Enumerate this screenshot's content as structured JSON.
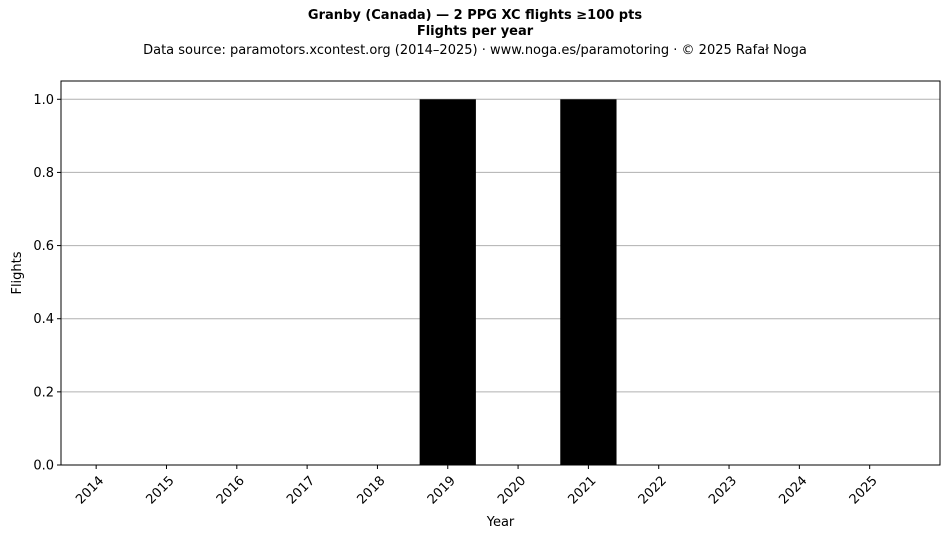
{
  "chart_data": {
    "type": "bar",
    "title": "Granby (Canada)  —  2 PPG XC flights ≥100 pts",
    "subtitle": "Flights per year",
    "source_note": "Data source: paramotors.xcontest.org (2014–2025)  ·  www.noga.es/paramotoring  ·  © 2025 Rafał Noga",
    "xlabel": "Year",
    "ylabel": "Flights",
    "categories": [
      "2014",
      "2015",
      "2016",
      "2017",
      "2018",
      "2019",
      "2020",
      "2021",
      "2022",
      "2023",
      "2024",
      "2025"
    ],
    "values": [
      0,
      0,
      0,
      0,
      0,
      1,
      0,
      1,
      0,
      0,
      0,
      0
    ],
    "ylim": [
      0,
      1.05
    ],
    "yticks": [
      "0.0",
      "0.2",
      "0.4",
      "0.6",
      "0.8",
      "1.0"
    ],
    "grid": "horizontal",
    "bar_color": "#000000",
    "grid_color": "#b0b0b0"
  }
}
